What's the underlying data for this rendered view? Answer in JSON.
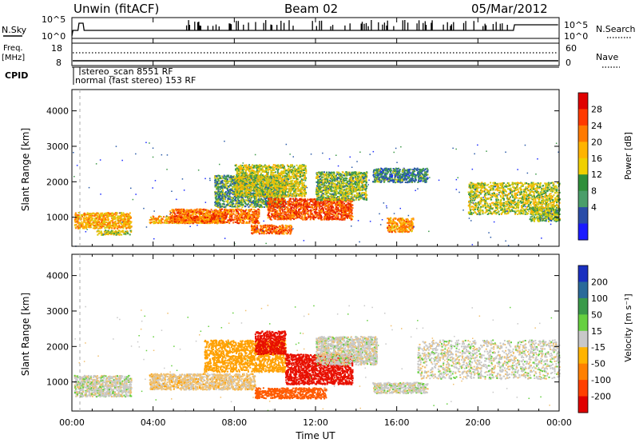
{
  "header": {
    "station": "Unwin (fitACF)",
    "beam": "Beam 02",
    "date": "05/Mar/2012"
  },
  "panels": {
    "nsky": {
      "left_label": "N.Sky",
      "left_ticks": [
        "10^5",
        "10^0"
      ],
      "right_ticks": [
        "10^5",
        "10^0"
      ],
      "right_label": "N.Search",
      "right_legend_line": "dotted"
    },
    "freq": {
      "left_label_1": "Freq.",
      "left_label_2": "[MHz]",
      "left_ticks": [
        "18",
        "8"
      ],
      "right_ticks": [
        "60",
        "0"
      ],
      "right_label": "Nave",
      "right_legend_line": "dotted"
    },
    "cpid": {
      "label": "CPID",
      "modes": [
        "stereo_scan 8551 RF",
        "normal (fast stereo) 153 RF"
      ]
    }
  },
  "x_axis": {
    "title": "Time UT",
    "ticks": [
      "00:00",
      "04:00",
      "08:00",
      "12:00",
      "16:00",
      "20:00",
      "00:00"
    ]
  },
  "power_panel": {
    "ylabel": "Slant Range [km]",
    "yticks": [
      "4000",
      "3000",
      "2000",
      "1000"
    ],
    "colorbar_label": "Power [dB]",
    "colorbar_ticks": [
      "28",
      "24",
      "20",
      "16",
      "12",
      "8",
      "4"
    ],
    "colorbar_colors": [
      "#e00000",
      "#ff3a00",
      "#ff7a00",
      "#ffb400",
      "#f0d000",
      "#2f8f3a",
      "#4a9e6a",
      "#2a4da8",
      "#1a1aff"
    ]
  },
  "velocity_panel": {
    "ylabel": "Slant Range [km]",
    "yticks": [
      "4000",
      "3000",
      "2000",
      "1000"
    ],
    "colorbar_label": "Velocity [m s⁻¹]",
    "colorbar_ticks": [
      "200",
      "100",
      "50",
      "15",
      "-15",
      "-50",
      "-100",
      "-200"
    ],
    "colorbar_colors": [
      "#1a30c0",
      "#2a6a9a",
      "#3a9a4a",
      "#66d040",
      "#c8c8c8",
      "#ffb400",
      "#ff8000",
      "#ff4000",
      "#e00000"
    ]
  },
  "chart_data": [
    {
      "type": "line",
      "title": "N.Sky / N.Search",
      "x_range_ut_hours": [
        0,
        24
      ],
      "y_scale": "log",
      "y_range": [
        1,
        100000
      ],
      "series": [
        {
          "name": "N.Sky",
          "style": "solid",
          "description_level": "near 10^0 baseline with spikes to 10^5, rising after ~22 UT"
        },
        {
          "name": "N.Search",
          "style": "dotted"
        }
      ]
    },
    {
      "type": "line",
      "title": "Freq / Nave",
      "x_range_ut_hours": [
        0,
        24
      ],
      "series": [
        {
          "name": "Freq. [MHz]",
          "style": "solid",
          "approx_value": 8
        },
        {
          "name": "Nave",
          "style": "dotted",
          "approx_value": 50
        }
      ],
      "y_left_range": [
        8,
        18
      ],
      "y_right_range": [
        0,
        60
      ]
    },
    {
      "type": "heatmap",
      "title": "Power [dB]",
      "x": "Time UT (hours)",
      "y": "Slant Range [km]",
      "x_range": [
        0,
        24
      ],
      "y_range": [
        180,
        4600
      ],
      "z_range": [
        0,
        30
      ],
      "regions": [
        {
          "t0": 0.1,
          "t1": 2.9,
          "r0": 700,
          "r1": 1150,
          "power": 20
        },
        {
          "t0": 1.2,
          "t1": 2.9,
          "r0": 520,
          "r1": 650,
          "power": 16
        },
        {
          "t0": 3.8,
          "t1": 7.5,
          "r0": 850,
          "r1": 1050,
          "power": 20
        },
        {
          "t0": 4.8,
          "t1": 9.2,
          "r0": 850,
          "r1": 1250,
          "power": 24
        },
        {
          "t0": 7.0,
          "t1": 10.5,
          "r0": 1300,
          "r1": 2200,
          "power": 12
        },
        {
          "t0": 8.0,
          "t1": 11.5,
          "r0": 1600,
          "r1": 2500,
          "power": 16
        },
        {
          "t0": 8.8,
          "t1": 10.8,
          "r0": 550,
          "r1": 800,
          "power": 24
        },
        {
          "t0": 9.6,
          "t1": 13.8,
          "r0": 950,
          "r1": 1550,
          "power": 26
        },
        {
          "t0": 12.0,
          "t1": 14.5,
          "r0": 1500,
          "r1": 2300,
          "power": 14
        },
        {
          "t0": 15.5,
          "t1": 16.8,
          "r0": 600,
          "r1": 1000,
          "power": 22
        },
        {
          "t0": 14.8,
          "t1": 17.5,
          "r0": 2000,
          "r1": 2400,
          "power": 10
        },
        {
          "t0": 19.5,
          "t1": 24.0,
          "r0": 1100,
          "r1": 2000,
          "power": 16
        },
        {
          "t0": 22.5,
          "t1": 24.0,
          "r0": 900,
          "r1": 1300,
          "power": 14
        }
      ]
    },
    {
      "type": "heatmap",
      "title": "Velocity [m s⁻¹]",
      "x": "Time UT (hours)",
      "y": "Slant Range [km]",
      "x_range": [
        0,
        24
      ],
      "y_range": [
        180,
        4600
      ],
      "z_range": [
        -250,
        250
      ],
      "regions": [
        {
          "t0": 0.1,
          "t1": 2.9,
          "r0": 600,
          "r1": 1200,
          "velocity": 0
        },
        {
          "t0": 3.8,
          "t1": 9.0,
          "r0": 800,
          "r1": 1250,
          "velocity": -20
        },
        {
          "t0": 6.5,
          "t1": 10.5,
          "r0": 1300,
          "r1": 2200,
          "velocity": -60
        },
        {
          "t0": 9.0,
          "t1": 10.5,
          "r0": 1800,
          "r1": 2450,
          "velocity": -200
        },
        {
          "t0": 9.0,
          "t1": 12.5,
          "r0": 550,
          "r1": 850,
          "velocity": -120
        },
        {
          "t0": 10.5,
          "t1": 13.8,
          "r0": 950,
          "r1": 1800,
          "velocity": -200
        },
        {
          "t0": 12.0,
          "t1": 15.0,
          "r0": 1500,
          "r1": 2300,
          "velocity": 0
        },
        {
          "t0": 14.8,
          "t1": 17.5,
          "r0": 700,
          "r1": 1000,
          "velocity": 0
        },
        {
          "t0": 17.0,
          "t1": 24.0,
          "r0": 1100,
          "r1": 2200,
          "velocity": 0
        }
      ]
    }
  ]
}
